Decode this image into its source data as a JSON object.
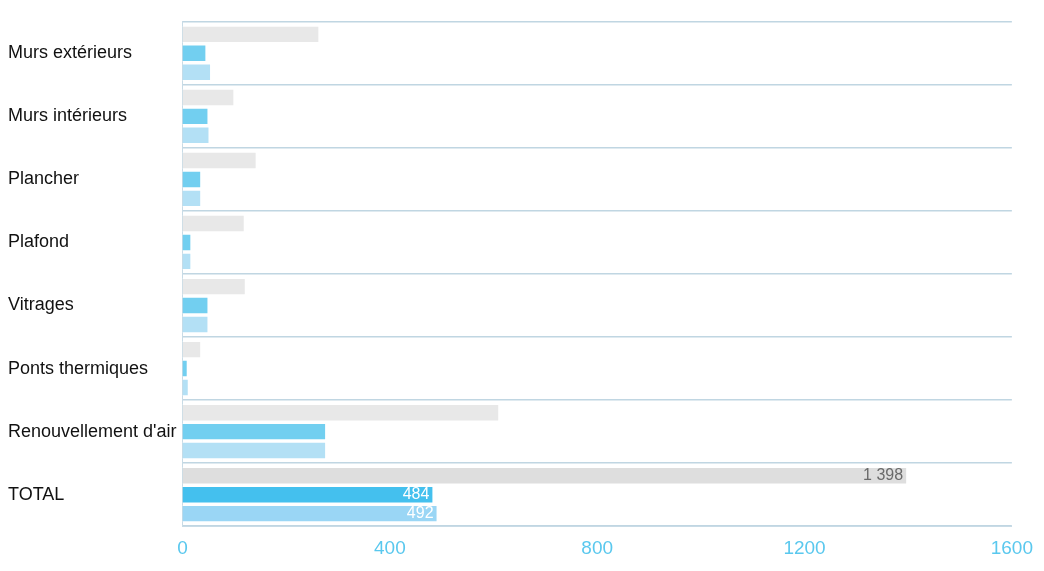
{
  "chart_data": {
    "type": "bar",
    "orientation": "horizontal",
    "categories": [
      "Murs extérieurs",
      "Murs intérieurs",
      "Plancher",
      "Plafond",
      "Vitrages",
      "Ponts thermiques",
      "Renouvellement d'air",
      "TOTAL"
    ],
    "series": [
      {
        "colors": [
          "#e8e8e8",
          "#e8e8e8",
          "#e8e8e8",
          "#e8e8e8",
          "#e8e8e8",
          "#e8e8e8",
          "#e8e8e8",
          "#dedede"
        ],
        "values": [
          264,
          100,
          143,
          120,
          122,
          36,
          611,
          1398
        ],
        "value_labels": [
          null,
          null,
          null,
          null,
          null,
          null,
          null,
          "1 398"
        ]
      },
      {
        "colors": [
          "#72cff0",
          "#72cff0",
          "#72cff0",
          "#72cff0",
          "#72cff0",
          "#72cff0",
          "#72cff0",
          "#44c0ee"
        ],
        "values": [
          46,
          50,
          36,
          17,
          50,
          10,
          277,
          484
        ],
        "value_labels": [
          null,
          null,
          null,
          null,
          null,
          null,
          null,
          "484"
        ]
      },
      {
        "colors": [
          "#b3e0f5",
          "#b3e0f5",
          "#b3e0f5",
          "#b3e0f5",
          "#b3e0f5",
          "#b3e0f5",
          "#b3e0f5",
          "#9ad6f5"
        ],
        "values": [
          55,
          52,
          36,
          17,
          50,
          12,
          277,
          492
        ],
        "value_labels": [
          null,
          null,
          null,
          null,
          null,
          null,
          null,
          "492"
        ]
      }
    ],
    "xlim": [
      0,
      1600
    ],
    "xticks": [
      0,
      400,
      800,
      1200,
      1600
    ],
    "grid": "y",
    "legend": false
  }
}
